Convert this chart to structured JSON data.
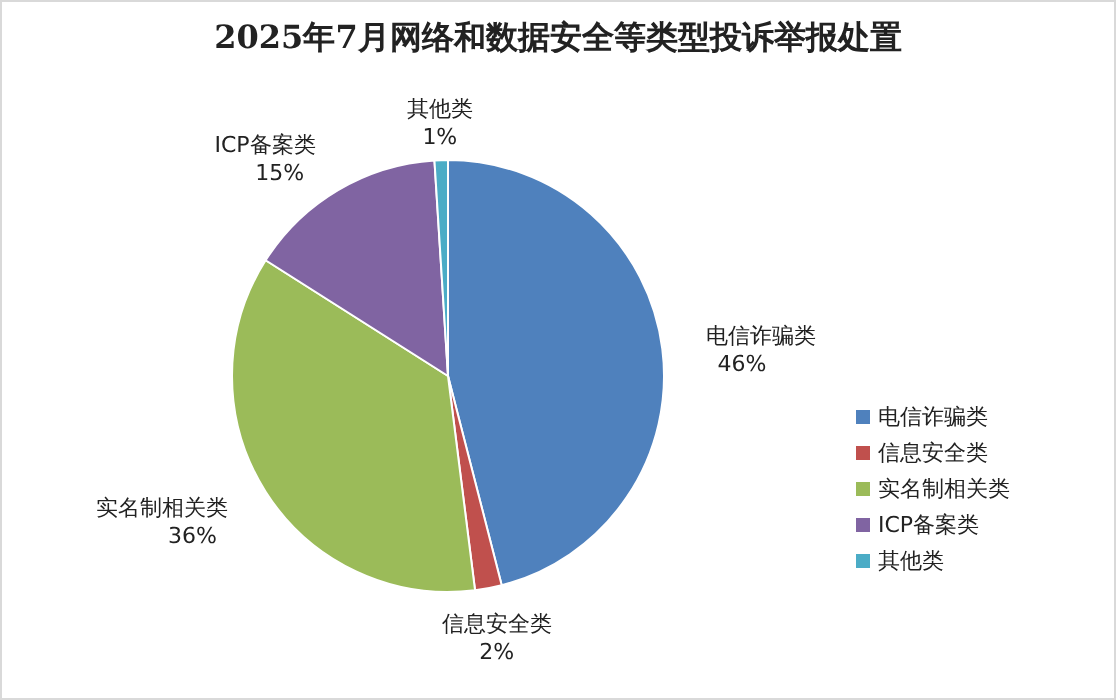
{
  "chart_data": {
    "type": "pie",
    "title": "2025年7月网络和数据安全等类型投诉举报处置",
    "categories": [
      "电信诈骗类",
      "信息安全类",
      "实名制相关类",
      "ICP备案类",
      "其他类"
    ],
    "values": [
      46,
      2,
      36,
      15,
      1
    ],
    "value_labels": [
      "46%",
      "2%",
      "36%",
      "15%",
      "1%"
    ],
    "colors": [
      "#4f81bd",
      "#c0504d",
      "#9bbb59",
      "#8064a2",
      "#4bacc6"
    ],
    "legend": "right"
  }
}
